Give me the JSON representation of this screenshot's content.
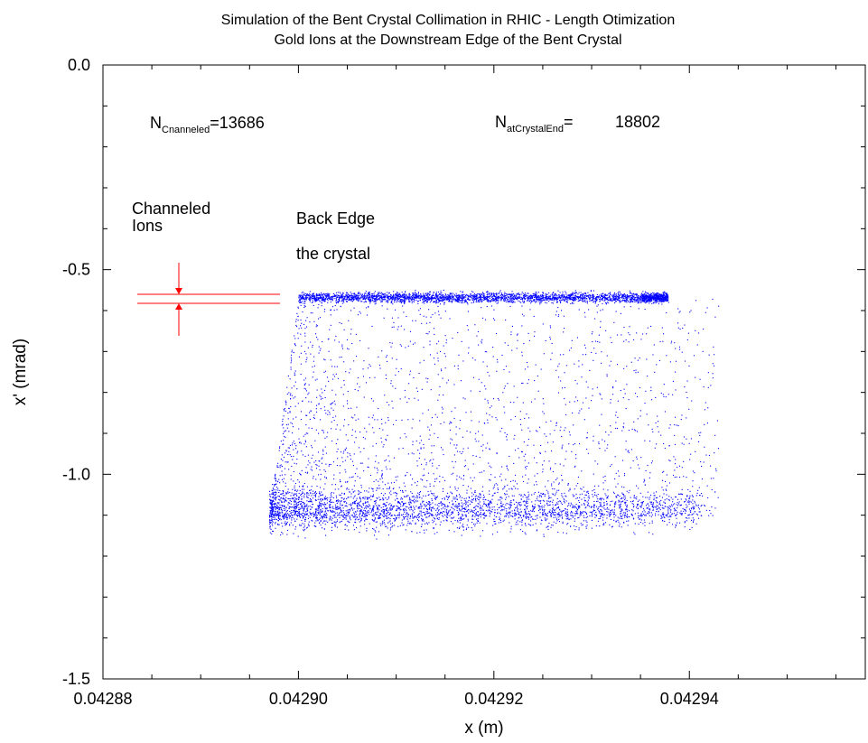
{
  "chart_data": {
    "type": "scatter",
    "title": "Simulation of the Bent Crystal Collimation in RHIC - Length Otimization",
    "subtitle": "Gold Ions at the Downstream Edge of the Bent Crystal",
    "xlabel": "x (m)",
    "ylabel": "x' (mrad)",
    "xlim": [
      0.04288,
      0.042958
    ],
    "ylim": [
      -1.5,
      0.0
    ],
    "x_ticks": [
      "0.04288",
      "0.04290",
      "0.04292",
      "0.04294"
    ],
    "x_tick_values": [
      0.04288,
      0.0429,
      0.04292,
      0.04294
    ],
    "y_ticks": [
      "0.0",
      "-0.5",
      "-1.0",
      "-1.5"
    ],
    "y_tick_values": [
      0.0,
      -0.5,
      -1.0,
      -1.5
    ],
    "grid": false,
    "series": [
      {
        "color": "#0000ff",
        "bands": [
          {
            "kind": "channeled",
            "x_range": [
              0.0429,
              0.042946
            ],
            "y_center": -0.567,
            "y_spread": 0.006
          },
          {
            "kind": "amorphous",
            "x_range": [
              0.042897,
              0.042941
            ],
            "y_center": -1.085,
            "y_spread": 0.025
          },
          {
            "kind": "dechanneled",
            "x_range": [
              0.042897,
              0.042943
            ],
            "y_range": [
              -1.1,
              -0.57
            ]
          }
        ]
      }
    ],
    "annotations": {
      "n_channeled": {
        "label": "N",
        "subscript": "Cnanneled",
        "value": "=13686"
      },
      "n_crystal_end": {
        "label": "N",
        "subscript": "atCrystalEnd",
        "value": "=",
        "number": "18802"
      },
      "channeled_ions": [
        "Channeled",
        "Ions"
      ],
      "back_edge": [
        "Back Edge",
        "the crystal"
      ],
      "marker_color": "#ff0000"
    }
  }
}
